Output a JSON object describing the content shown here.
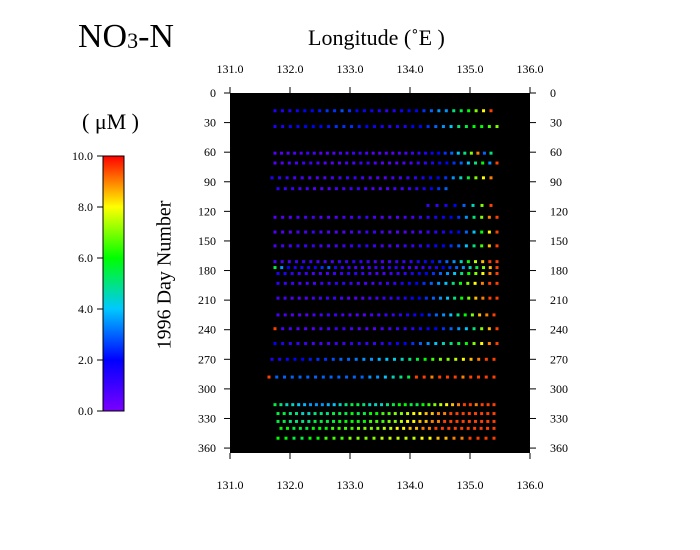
{
  "chart_data": {
    "type": "scatter",
    "title": {
      "main": "NO",
      "sub": "3",
      "tail": "-N"
    },
    "xlabel": "Longitude  (˚E )",
    "ylabel": "1996  Day  Number",
    "colorbar_label": "( μM )",
    "xlim": [
      131.0,
      136.0
    ],
    "ylim": [
      0,
      365
    ],
    "x_ticks": [
      "131.0",
      "132.0",
      "133.0",
      "134.0",
      "135.0",
      "136.0"
    ],
    "y_ticks": [
      "0",
      "30",
      "60",
      "90",
      "120",
      "150",
      "180",
      "210",
      "240",
      "270",
      "300",
      "330",
      "360"
    ],
    "colorbar_ticks": [
      "10.0",
      "8.0",
      "6.0",
      "4.0",
      "2.0",
      "0.0"
    ],
    "color_range": [
      0,
      10
    ],
    "colormap": [
      "#7a00ff",
      "#0000ff",
      "#00c8ff",
      "#00ff00",
      "#ffff00",
      "#ff0000"
    ],
    "background": "#000000",
    "series": [
      {
        "day": 18,
        "x_start": 131.75,
        "x_end": 135.35,
        "n": 30,
        "values": [
          1.5,
          1.5,
          1.5,
          1.8,
          2,
          2,
          2.2,
          2.5,
          2.5,
          2.8,
          2.5,
          2,
          1.8,
          1.8,
          1.5,
          1.2,
          1.5,
          1.8,
          2,
          2,
          2.5,
          3,
          3.5,
          3.5,
          5,
          5.5,
          6,
          7,
          8,
          9.5
        ]
      },
      {
        "day": 34,
        "x_start": 131.75,
        "x_end": 135.45,
        "n": 30,
        "values": [
          1.5,
          1.5,
          1.8,
          1.8,
          2,
          2,
          2,
          2.2,
          2.5,
          2.5,
          2.5,
          2.2,
          2,
          1.8,
          1.5,
          1.2,
          1.5,
          1.5,
          2,
          2,
          2.5,
          3,
          3.5,
          4,
          5,
          5.5,
          6,
          6,
          6.5,
          7
        ]
      },
      {
        "day": 61,
        "x_start": 131.75,
        "x_end": 135.35,
        "n": 34,
        "values": [
          0.6,
          0.6,
          0.6,
          0.8,
          0.8,
          1,
          0.8,
          0.6,
          0.6,
          0.6,
          0.8,
          0.8,
          1,
          1,
          0.8,
          0.6,
          0.6,
          0.6,
          0.6,
          0.8,
          0.8,
          1,
          1.2,
          1.5,
          1.8,
          2,
          2.5,
          3,
          4,
          5,
          7,
          9,
          3,
          5
        ]
      },
      {
        "day": 71,
        "x_start": 131.75,
        "x_end": 135.45,
        "n": 32,
        "values": [
          0.6,
          0.6,
          0.8,
          0.8,
          1,
          1,
          0.8,
          0.6,
          0.6,
          0.6,
          0.8,
          0.8,
          1,
          1,
          0.8,
          0.6,
          0.6,
          0.6,
          0.8,
          0.8,
          1,
          1.2,
          1.5,
          1.8,
          2,
          2.5,
          3,
          4,
          5,
          6,
          3.5,
          9.5
        ]
      },
      {
        "day": 86,
        "x_start": 131.7,
        "x_end": 135.35,
        "n": 30,
        "values": [
          1.5,
          1.2,
          1,
          0.8,
          0.8,
          0.6,
          0.6,
          0.6,
          0.8,
          0.8,
          1,
          1,
          0.8,
          0.6,
          0.6,
          0.6,
          0.8,
          0.8,
          1,
          1.2,
          1.5,
          1.8,
          2,
          2.5,
          3.5,
          4.5,
          5.5,
          7,
          8,
          9
        ]
      },
      {
        "day": 97,
        "x_start": 131.8,
        "x_end": 134.6,
        "n": 24,
        "values": [
          1.2,
          1,
          1,
          0.8,
          0.8,
          0.6,
          0.6,
          0.6,
          0.8,
          0.8,
          1,
          1,
          0.8,
          0.6,
          0.6,
          0.6,
          0.8,
          0.8,
          1,
          1.2,
          1.5,
          2,
          2.5,
          3
        ]
      },
      {
        "day": 114,
        "x_start": 134.3,
        "x_end": 135.35,
        "n": 8,
        "values": [
          1,
          1,
          1.5,
          2,
          3,
          4.5,
          7,
          9.5
        ]
      },
      {
        "day": 126,
        "x_start": 131.75,
        "x_end": 135.45,
        "n": 30,
        "values": [
          0.6,
          0.6,
          0.6,
          0.8,
          0.8,
          0.8,
          0.6,
          0.6,
          0.6,
          0.8,
          0.8,
          1,
          1,
          0.8,
          0.6,
          0.6,
          0.6,
          0.8,
          0.8,
          1,
          1.2,
          1.5,
          1.8,
          2,
          2.5,
          3.5,
          5,
          7,
          9,
          9.5
        ]
      },
      {
        "day": 141,
        "x_start": 131.75,
        "x_end": 135.45,
        "n": 30,
        "values": [
          0.6,
          0.6,
          0.6,
          0.8,
          0.8,
          1,
          0.8,
          0.6,
          0.6,
          0.6,
          0.8,
          0.8,
          1,
          1,
          0.8,
          0.6,
          0.6,
          0.6,
          0.8,
          0.8,
          1,
          1.2,
          1.5,
          1.8,
          2,
          3,
          4,
          6,
          8,
          9.5
        ]
      },
      {
        "day": 155,
        "x_start": 131.75,
        "x_end": 135.45,
        "n": 30,
        "values": [
          0.8,
          0.8,
          0.8,
          1,
          1,
          1,
          0.8,
          0.8,
          0.8,
          1,
          1,
          1.2,
          1.2,
          1,
          0.8,
          0.8,
          0.8,
          1,
          1,
          1.2,
          1.5,
          1.8,
          2,
          2.5,
          3,
          4,
          5,
          6.5,
          8.5,
          9.5
        ]
      },
      {
        "day": 171,
        "x_start": 131.75,
        "x_end": 135.45,
        "n": 32,
        "values": [
          0.8,
          0.8,
          0.8,
          1,
          1,
          1,
          0.8,
          0.8,
          0.8,
          1,
          1,
          1.2,
          1.2,
          1,
          0.8,
          0.8,
          0.8,
          1,
          1,
          1.2,
          1.5,
          1.8,
          2,
          2.5,
          3,
          3.5,
          4.5,
          6,
          7.5,
          8.5,
          9.5,
          9.5
        ]
      },
      {
        "day": 177,
        "x_start": 131.75,
        "x_end": 135.45,
        "n": 34,
        "values": [
          5.5,
          3.5,
          2,
          1.5,
          1.5,
          1.5,
          1.8,
          2.5,
          3,
          1.5,
          1,
          1,
          0.8,
          0.8,
          0.8,
          1,
          1,
          1.2,
          1.2,
          1,
          0.8,
          0.8,
          1,
          1.2,
          1.5,
          2,
          2.5,
          3,
          3.5,
          4.5,
          5.5,
          7,
          8.5,
          9.5
        ]
      },
      {
        "day": 183,
        "x_start": 131.8,
        "x_end": 135.45,
        "n": 32,
        "values": [
          1.5,
          1.5,
          1.2,
          1,
          1,
          0.8,
          0.8,
          0.8,
          1,
          1,
          1.2,
          1.2,
          1,
          0.8,
          0.8,
          0.8,
          1,
          1,
          1.2,
          1.5,
          1.8,
          2,
          2.5,
          3,
          3.5,
          4,
          5,
          6,
          7,
          8,
          9,
          9.5
        ]
      },
      {
        "day": 193,
        "x_start": 131.8,
        "x_end": 135.45,
        "n": 31,
        "values": [
          1.2,
          1,
          1,
          0.8,
          0.8,
          0.8,
          1,
          1,
          1.2,
          1.2,
          1,
          0.8,
          0.8,
          0.8,
          1,
          1,
          1.2,
          1.5,
          1.8,
          2,
          2.5,
          3,
          3.5,
          4,
          5,
          6,
          7,
          8,
          9,
          9.5,
          9.5
        ]
      },
      {
        "day": 208,
        "x_start": 131.8,
        "x_end": 135.45,
        "n": 32,
        "values": [
          0.8,
          0.8,
          0.6,
          0.6,
          0.6,
          0.8,
          0.8,
          1,
          1,
          0.8,
          0.6,
          0.6,
          0.6,
          0.8,
          0.8,
          1,
          1,
          1.2,
          1.5,
          1.8,
          2,
          2.5,
          3,
          3.5,
          4,
          5,
          6,
          7,
          8.5,
          9,
          9.5,
          9.5
        ]
      },
      {
        "day": 225,
        "x_start": 131.8,
        "x_end": 135.4,
        "n": 31,
        "values": [
          0.8,
          0.8,
          0.6,
          0.6,
          0.6,
          0.8,
          0.8,
          1,
          1,
          0.8,
          0.6,
          0.6,
          0.6,
          0.8,
          0.8,
          1,
          1,
          1.2,
          1.5,
          1.8,
          2,
          2.5,
          3,
          3.5,
          4,
          5,
          6,
          7,
          8.5,
          9,
          9.5
        ]
      },
      {
        "day": 239,
        "x_start": 131.75,
        "x_end": 135.45,
        "n": 30,
        "values": [
          9.5,
          0.8,
          0.8,
          0.6,
          0.6,
          0.6,
          0.8,
          0.8,
          1,
          1,
          0.8,
          0.6,
          0.6,
          0.6,
          0.8,
          0.8,
          1,
          1,
          1.2,
          1.5,
          1.8,
          2,
          2.5,
          3,
          3.5,
          4,
          5,
          7,
          8.5,
          9.5
        ]
      },
      {
        "day": 254,
        "x_start": 131.75,
        "x_end": 135.45,
        "n": 30,
        "values": [
          2,
          1.5,
          1.2,
          1,
          1,
          0.8,
          0.8,
          0.8,
          1,
          1,
          1.2,
          1.2,
          1,
          1,
          1.2,
          1.5,
          1.8,
          2,
          2.5,
          3,
          3.5,
          4,
          4.5,
          5,
          5.5,
          6,
          7,
          8,
          9,
          9.5
        ]
      },
      {
        "day": 270,
        "x_start": 131.7,
        "x_end": 135.4,
        "n": 30,
        "values": [
          1.5,
          1.5,
          1.8,
          2,
          2,
          2.2,
          2.5,
          2.5,
          2.8,
          3,
          3,
          3.2,
          3.5,
          3.5,
          3.8,
          4,
          4.2,
          4.5,
          5,
          5.5,
          6,
          6.5,
          7,
          7,
          7.5,
          8,
          8.5,
          9,
          9.5,
          9.5
        ]
      },
      {
        "day": 288,
        "x_start": 131.65,
        "x_end": 135.4,
        "n": 30,
        "values": [
          9.5,
          3,
          3,
          3,
          3,
          3,
          3,
          3,
          3,
          3,
          3,
          3,
          3,
          3.5,
          3.5,
          4,
          4.5,
          5,
          5.5,
          9.5,
          9.5,
          9,
          9.5,
          9.5,
          9.5,
          9,
          9.5,
          9.5,
          9.5,
          9.5
        ]
      },
      {
        "day": 316,
        "x_start": 131.75,
        "x_end": 135.4,
        "n": 38,
        "values": [
          5.5,
          5,
          4.5,
          4.5,
          4,
          3.8,
          3.5,
          3.5,
          3.5,
          3.8,
          4,
          4.5,
          5,
          5.5,
          5.5,
          5,
          4.5,
          4.5,
          4.5,
          5,
          5.5,
          6,
          6,
          5.5,
          5.5,
          6,
          6.5,
          7,
          7.5,
          8,
          8.5,
          9,
          9.5,
          9.5,
          9,
          9.5,
          9.5,
          9.5
        ]
      },
      {
        "day": 325,
        "x_start": 131.8,
        "x_end": 135.4,
        "n": 36,
        "values": [
          5.5,
          5.5,
          5,
          5,
          4.5,
          4.5,
          5,
          5,
          5,
          5.5,
          5.5,
          5.5,
          6,
          5.5,
          5.5,
          6,
          6,
          6.5,
          6.5,
          7,
          7,
          7.5,
          8,
          8,
          8.5,
          8.5,
          9,
          9,
          9.5,
          9.5,
          9.5,
          9.5,
          9.5,
          9.5,
          9.5,
          9.5
        ]
      },
      {
        "day": 333,
        "x_start": 131.8,
        "x_end": 135.4,
        "n": 36,
        "values": [
          5.5,
          5.5,
          5,
          5,
          5,
          5,
          5.5,
          5.5,
          5.5,
          5.5,
          6,
          6,
          6,
          6,
          6,
          6.5,
          6.5,
          6.5,
          7,
          7,
          7.5,
          8,
          8,
          8.5,
          8.5,
          9,
          9,
          9.5,
          9.5,
          9.5,
          9.5,
          9.5,
          9.5,
          9.5,
          9.5,
          9.5
        ]
      },
      {
        "day": 340,
        "x_start": 131.85,
        "x_end": 135.4,
        "n": 34,
        "values": [
          6,
          6,
          5.5,
          5.5,
          5.5,
          6,
          6,
          6,
          6.5,
          6.5,
          6.5,
          6.5,
          7,
          7,
          7,
          7,
          7.5,
          7.5,
          8,
          8,
          8.5,
          8.5,
          9,
          9,
          9.5,
          9.5,
          9.5,
          9.5,
          9.5,
          9.5,
          9.5,
          9.5,
          9.5,
          9.5
        ]
      },
      {
        "day": 350,
        "x_start": 131.8,
        "x_end": 135.4,
        "n": 28,
        "values": [
          6,
          6,
          5.5,
          5.5,
          6,
          6,
          6.5,
          6.5,
          6.5,
          7,
          7,
          7,
          7,
          7.5,
          7.5,
          7.5,
          7.5,
          7.5,
          8,
          8,
          8.5,
          8.5,
          9,
          9,
          9.5,
          9.5,
          9.5,
          9.5
        ]
      }
    ]
  }
}
